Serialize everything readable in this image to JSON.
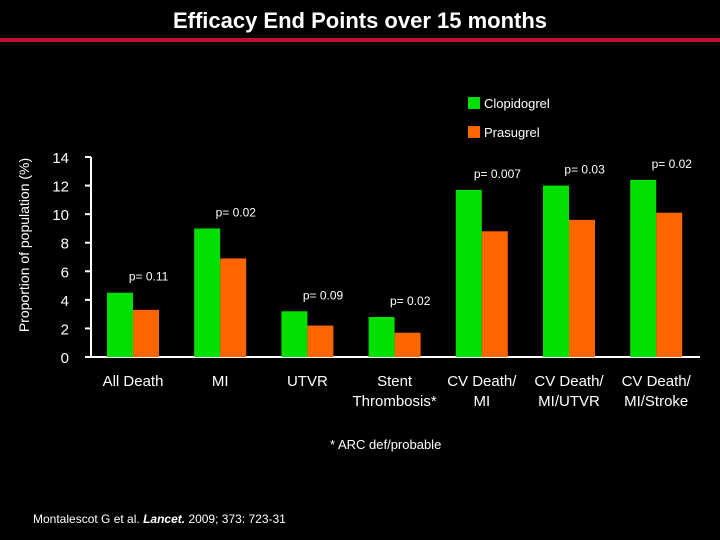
{
  "chart_data": {
    "type": "bar",
    "title": "Efficacy End Points over 15 months",
    "ylabel": "Proportion of population (%)",
    "ylim": [
      0,
      14
    ],
    "yticks": [
      0,
      2,
      4,
      6,
      8,
      10,
      12,
      14
    ],
    "categories": [
      [
        "All Death"
      ],
      [
        "MI"
      ],
      [
        "UTVR"
      ],
      [
        "Stent",
        "Thrombosis*"
      ],
      [
        "CV Death/",
        "MI"
      ],
      [
        "CV Death/",
        "MI/UTVR"
      ],
      [
        "CV Death/",
        "MI/Stroke"
      ]
    ],
    "series": [
      {
        "name": "Clopidogrel",
        "color": "#00e000",
        "values": [
          4.5,
          9.0,
          3.2,
          2.8,
          11.7,
          12.0,
          12.4
        ]
      },
      {
        "name": "Prasugrel",
        "color": "#ff6600",
        "values": [
          3.3,
          6.9,
          2.2,
          1.7,
          8.8,
          9.6,
          10.1
        ]
      }
    ],
    "pvalues": [
      "p= 0.11",
      "p= 0.02",
      "p= 0.09",
      "p= 0.02",
      "p= 0.007",
      "p= 0.03",
      "p= 0.02"
    ],
    "legend_position": "top-right",
    "grid": false
  },
  "footnote": "* ARC def/probable",
  "citation": {
    "prefix": "Montalescot G et al. ",
    "journal": "Lancet.",
    "suffix": " 2009; 373: 723-31"
  }
}
